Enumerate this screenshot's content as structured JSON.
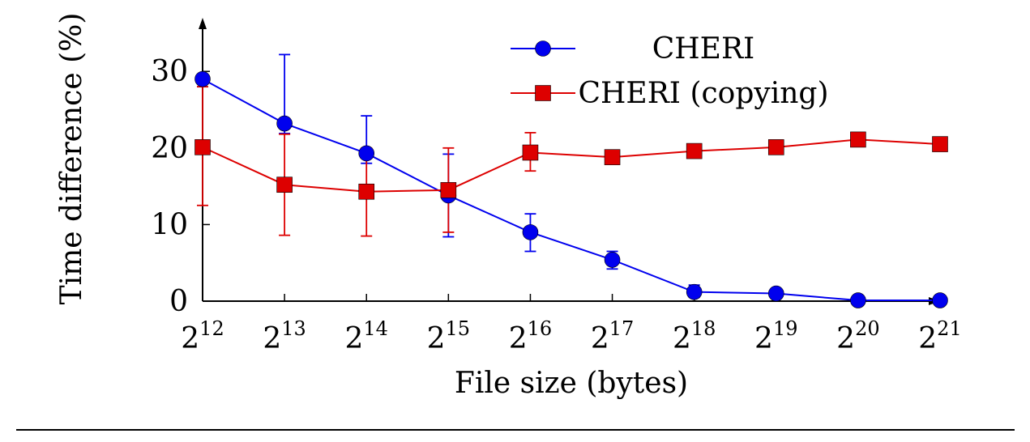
{
  "chart_data": {
    "type": "line",
    "xlabel": "File size (bytes)",
    "ylabel": "Time difference (%)",
    "x": [
      12,
      13,
      14,
      15,
      16,
      17,
      18,
      19,
      20,
      21
    ],
    "x_tick_base": "2",
    "x_tick_exponents": [
      "12",
      "13",
      "14",
      "15",
      "16",
      "17",
      "18",
      "19",
      "20",
      "21"
    ],
    "y_ticks": [
      0,
      10,
      20,
      30
    ],
    "ylim": [
      0,
      37
    ],
    "legend_position": "top-right",
    "grid": false,
    "series": [
      {
        "name": "CHERI",
        "color": "#0000ee",
        "marker": "circle",
        "values": [
          29.0,
          23.2,
          19.3,
          13.8,
          9.0,
          5.4,
          1.2,
          1.0,
          0.1,
          0.1
        ],
        "err_low": [
          28.0,
          21.9,
          18.0,
          8.4,
          6.5,
          4.2,
          0.5,
          0.5,
          0.0,
          0.0
        ],
        "err_high": [
          29.5,
          32.2,
          24.2,
          19.2,
          11.4,
          6.5,
          2.1,
          1.5,
          0.2,
          0.2
        ]
      },
      {
        "name": "CHERI (copying)",
        "color": "#dd0000",
        "marker": "square",
        "values": [
          20.1,
          15.2,
          14.3,
          14.5,
          19.4,
          18.8,
          19.6,
          20.1,
          21.1,
          20.5
        ],
        "err_low": [
          12.5,
          8.6,
          8.5,
          9.0,
          17.0,
          18.5,
          19.3,
          19.8,
          20.8,
          20.2
        ],
        "err_high": [
          28.0,
          21.8,
          20.0,
          20.0,
          22.0,
          19.1,
          19.9,
          20.4,
          21.4,
          20.8
        ]
      }
    ]
  }
}
